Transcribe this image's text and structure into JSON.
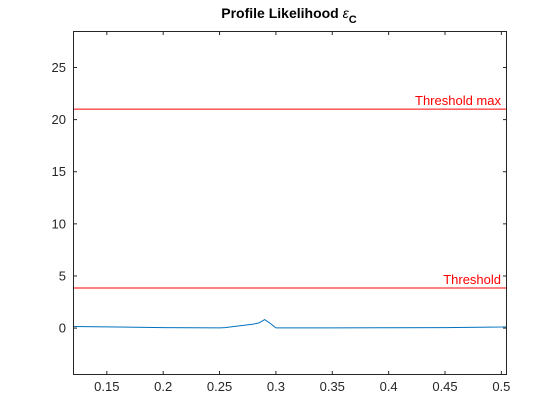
{
  "chart_data": {
    "type": "line",
    "title": "Profile Likelihood ",
    "title_symbol": "ε",
    "title_subscript": "C",
    "xlabel": "",
    "ylabel": "",
    "xlim": [
      0.12,
      0.505
    ],
    "ylim": [
      -4.5,
      28.5
    ],
    "xticks": [
      0.15,
      0.2,
      0.25,
      0.3,
      0.35,
      0.4,
      0.45,
      0.5
    ],
    "yticks": [
      0,
      5,
      10,
      15,
      20,
      25
    ],
    "grid": false,
    "series": [
      {
        "color": "#0072BD",
        "x": [
          0.12,
          0.15,
          0.2,
          0.25,
          0.255,
          0.26,
          0.27,
          0.28,
          0.285,
          0.29,
          0.295,
          0.3,
          0.35,
          0.4,
          0.45,
          0.5,
          0.505
        ],
        "y": [
          0.15,
          0.12,
          0.05,
          0.02,
          0.05,
          0.12,
          0.25,
          0.38,
          0.5,
          0.82,
          0.45,
          0.02,
          0.02,
          0.03,
          0.05,
          0.1,
          0.12
        ]
      }
    ],
    "thresholds": [
      {
        "label": "Threshold max",
        "value": 21,
        "color": "#FF0000"
      },
      {
        "label": "Threshold",
        "value": 3.84,
        "color": "#FF0000"
      }
    ]
  }
}
